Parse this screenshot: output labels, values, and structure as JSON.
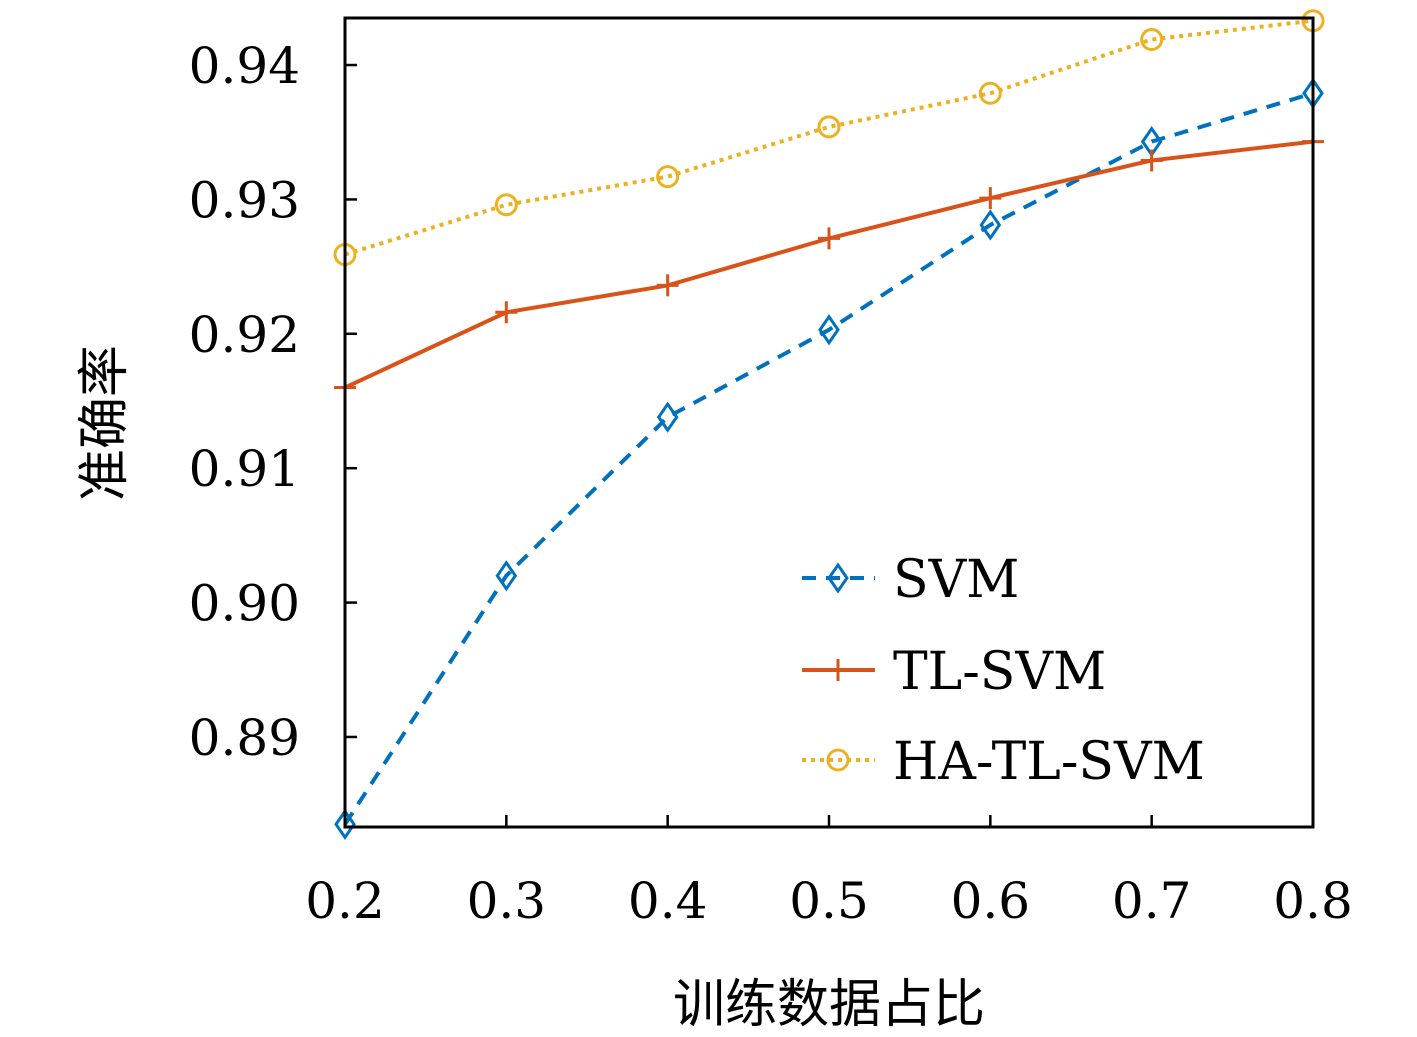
{
  "chart_data": {
    "type": "line",
    "title": "",
    "xlabel": "训练数据占比",
    "ylabel": "准确率",
    "x": [
      0.2,
      0.3,
      0.4,
      0.5,
      0.6,
      0.7,
      0.8
    ],
    "xlim": [
      0.2,
      0.8
    ],
    "ylim": [
      0.8833,
      0.9435
    ],
    "xticks": [
      "0.2",
      "0.3",
      "0.4",
      "0.5",
      "0.6",
      "0.7",
      "0.8"
    ],
    "yticks": [
      "0.89",
      "0.90",
      "0.91",
      "0.92",
      "0.93",
      "0.94"
    ],
    "ytick_values": [
      0.89,
      0.9,
      0.91,
      0.92,
      0.93,
      0.94
    ],
    "grid": false,
    "legend_position": "bottom-right",
    "series": [
      {
        "name": "SVM",
        "values": [
          0.8835,
          0.902,
          0.9138,
          0.9203,
          0.9281,
          0.9343,
          0.9379
        ],
        "color": "#0072BD",
        "line": "dashed",
        "marker": "diamond"
      },
      {
        "name": "TL-SVM",
        "values": [
          0.916,
          0.9216,
          0.9236,
          0.9271,
          0.9301,
          0.9329,
          0.9343
        ],
        "color": "#D95319",
        "line": "solid",
        "marker": "plus"
      },
      {
        "name": "HA-TL-SVM",
        "values": [
          0.9259,
          0.9296,
          0.9317,
          0.9354,
          0.9379,
          0.9419,
          0.9433
        ],
        "color": "#EDB120",
        "line": "dotted",
        "marker": "circle"
      }
    ]
  }
}
